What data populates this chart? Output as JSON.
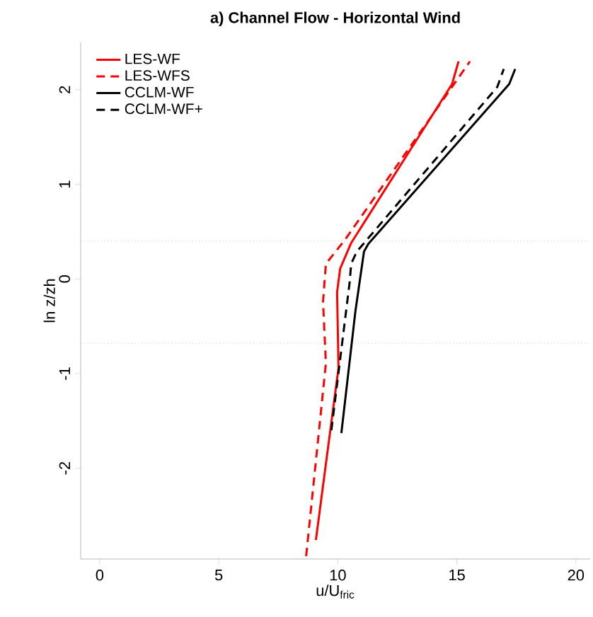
{
  "chart_data": {
    "type": "line",
    "title": "a) Channel Flow - Horizontal Wind",
    "xlabel": "u/U$_{fric}$",
    "ylabel": "ln z/zh",
    "xlim": [
      -0.8,
      20.6
    ],
    "ylim": [
      -2.96,
      2.5
    ],
    "xticks": [
      0,
      5,
      10,
      15,
      20
    ],
    "yticks": [
      -2,
      -1,
      0,
      1,
      2
    ],
    "grid": false,
    "legend": "top left",
    "marker": "none",
    "ref_lines": [
      {
        "axis": "y",
        "value": 0.4,
        "color": "#a0a0a0",
        "line_style": "dotted"
      },
      {
        "axis": "y",
        "value": -0.68,
        "color": "#a0a0a0",
        "line_style": "dotted"
      }
    ],
    "series": [
      {
        "name": "LES-WF",
        "color": "#ff0000",
        "line_style": "solid",
        "x": [
          9.08,
          10.03,
          9.97,
          10.1,
          10.56,
          14.8,
          15.07
        ],
        "values": [
          -2.76,
          -0.94,
          -0.14,
          0.11,
          0.38,
          2.06,
          2.3
        ]
      },
      {
        "name": "LES-WFS",
        "color": "#ff0000",
        "line_style": "dashed",
        "x": [
          8.67,
          9.5,
          9.38,
          9.5,
          10.29,
          15.55
        ],
        "values": [
          -2.93,
          -0.89,
          -0.24,
          0.16,
          0.41,
          2.3
        ]
      },
      {
        "name": "CCLM-WF",
        "color": "#000000",
        "line_style": "solid",
        "x": [
          10.15,
          10.74,
          11.1,
          11.28,
          17.2,
          17.45
        ],
        "values": [
          -1.63,
          -0.34,
          0.29,
          0.37,
          2.06,
          2.22
        ]
      },
      {
        "name": "CCLM-WF+",
        "color": "#000000",
        "line_style": "dashed",
        "x": [
          9.73,
          10.5,
          10.56,
          10.8,
          16.7,
          16.97
        ],
        "values": [
          -1.6,
          -0.03,
          0.16,
          0.29,
          2.03,
          2.22
        ]
      }
    ]
  }
}
